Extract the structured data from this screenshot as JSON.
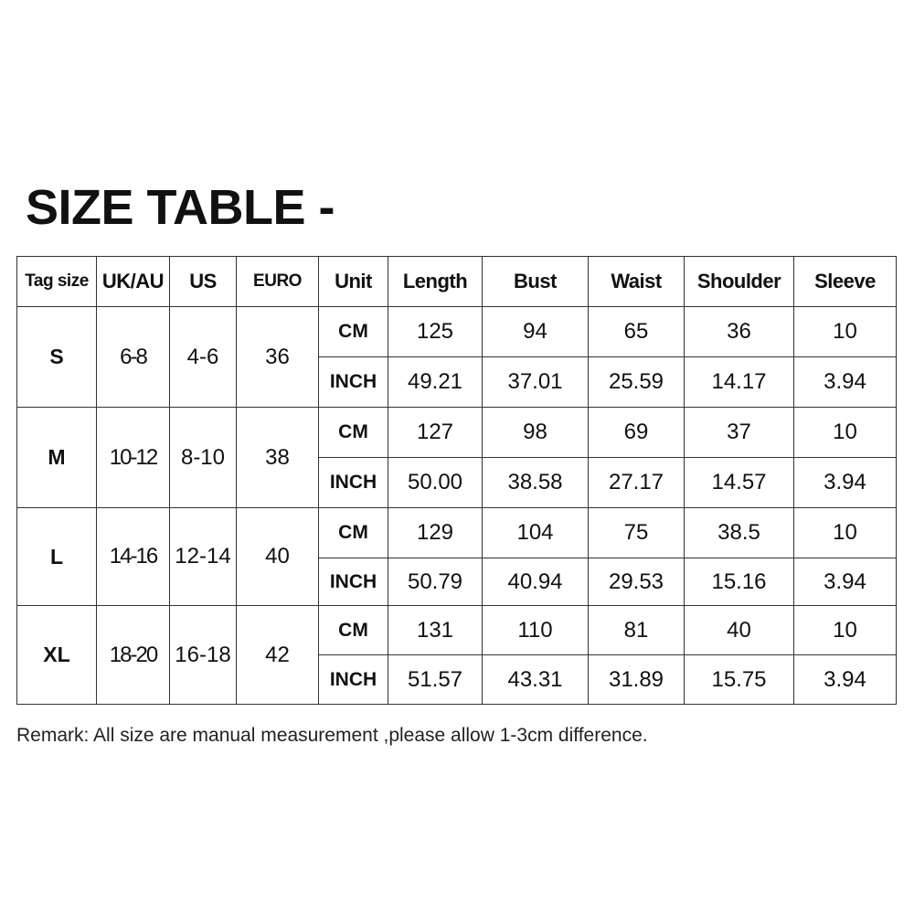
{
  "title": "SIZE TABLE -",
  "table": {
    "headers": [
      "Tag size",
      "UK/AU",
      "US",
      "EURO",
      "Unit",
      "Length",
      "Bust",
      "Waist",
      "Shoulder",
      "Sleeve"
    ],
    "sizes": [
      {
        "tag": "S",
        "uk_au": "6-8",
        "us": "4-6",
        "euro": "36",
        "rows": [
          {
            "unit": "CM",
            "values": [
              "125",
              "94",
              "65",
              "36",
              "10"
            ]
          },
          {
            "unit": "INCH",
            "values": [
              "49.21",
              "37.01",
              "25.59",
              "14.17",
              "3.94"
            ]
          }
        ]
      },
      {
        "tag": "M",
        "uk_au": "10-12",
        "us": "8-10",
        "euro": "38",
        "rows": [
          {
            "unit": "CM",
            "values": [
              "127",
              "98",
              "69",
              "37",
              "10"
            ]
          },
          {
            "unit": "INCH",
            "values": [
              "50.00",
              "38.58",
              "27.17",
              "14.57",
              "3.94"
            ]
          }
        ]
      },
      {
        "tag": "L",
        "uk_au": "14-16",
        "us": "12-14",
        "euro": "40",
        "rows": [
          {
            "unit": "CM",
            "values": [
              "129",
              "104",
              "75",
              "38.5",
              "10"
            ]
          },
          {
            "unit": "INCH",
            "values": [
              "50.79",
              "40.94",
              "29.53",
              "15.16",
              "3.94"
            ]
          }
        ]
      },
      {
        "tag": "XL",
        "uk_au": "18-20",
        "us": "16-18",
        "euro": "42",
        "rows": [
          {
            "unit": "CM",
            "values": [
              "131",
              "110",
              "81",
              "40",
              "10"
            ]
          },
          {
            "unit": "INCH",
            "values": [
              "51.57",
              "43.31",
              "31.89",
              "15.75",
              "3.94"
            ]
          }
        ]
      }
    ]
  },
  "remark": "Remark: All size are manual measurement ,please allow 1-3cm difference."
}
